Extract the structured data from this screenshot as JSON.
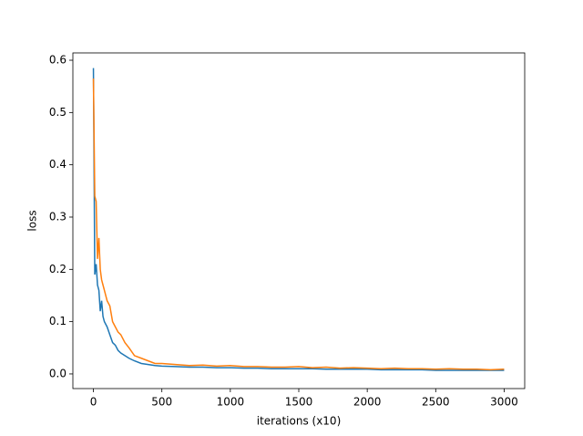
{
  "chart_data": {
    "type": "line",
    "xlabel": "iterations (x10)",
    "ylabel": "loss",
    "x": [
      0,
      10,
      20,
      30,
      40,
      50,
      60,
      70,
      80,
      100,
      120,
      140,
      160,
      180,
      200,
      230,
      260,
      300,
      350,
      400,
      450,
      500,
      600,
      700,
      800,
      900,
      1000,
      1100,
      1200,
      1300,
      1400,
      1500,
      1600,
      1700,
      1800,
      1900,
      2000,
      2100,
      2200,
      2300,
      2400,
      2500,
      2600,
      2700,
      2800,
      2900,
      3000
    ],
    "series": [
      {
        "color": "#1f77b4",
        "values": [
          0.585,
          0.19,
          0.21,
          0.17,
          0.16,
          0.12,
          0.14,
          0.11,
          0.1,
          0.09,
          0.075,
          0.06,
          0.055,
          0.045,
          0.04,
          0.035,
          0.03,
          0.025,
          0.02,
          0.018,
          0.016,
          0.015,
          0.014,
          0.013,
          0.013,
          0.012,
          0.012,
          0.011,
          0.011,
          0.01,
          0.01,
          0.01,
          0.01,
          0.009,
          0.009,
          0.009,
          0.009,
          0.008,
          0.008,
          0.008,
          0.008,
          0.007,
          0.007,
          0.007,
          0.007,
          0.007,
          0.007
        ]
      },
      {
        "color": "#ff7f0e",
        "values": [
          0.565,
          0.34,
          0.33,
          0.22,
          0.26,
          0.2,
          0.18,
          0.17,
          0.16,
          0.14,
          0.13,
          0.1,
          0.09,
          0.08,
          0.075,
          0.06,
          0.05,
          0.035,
          0.03,
          0.025,
          0.02,
          0.02,
          0.018,
          0.016,
          0.017,
          0.015,
          0.016,
          0.014,
          0.014,
          0.013,
          0.013,
          0.014,
          0.012,
          0.013,
          0.011,
          0.012,
          0.011,
          0.01,
          0.011,
          0.01,
          0.01,
          0.009,
          0.01,
          0.009,
          0.009,
          0.008,
          0.009
        ]
      }
    ],
    "xlim": [
      -150,
      3150
    ],
    "xticks": [
      0,
      500,
      1000,
      1500,
      2000,
      2500,
      3000
    ],
    "ylim": [
      -0.028,
      0.614
    ],
    "yticks": [
      {
        "value": 0,
        "label": "0.0"
      },
      0.1,
      0.2,
      0.3,
      0.4,
      0.5,
      0.6
    ],
    "grid": false
  }
}
